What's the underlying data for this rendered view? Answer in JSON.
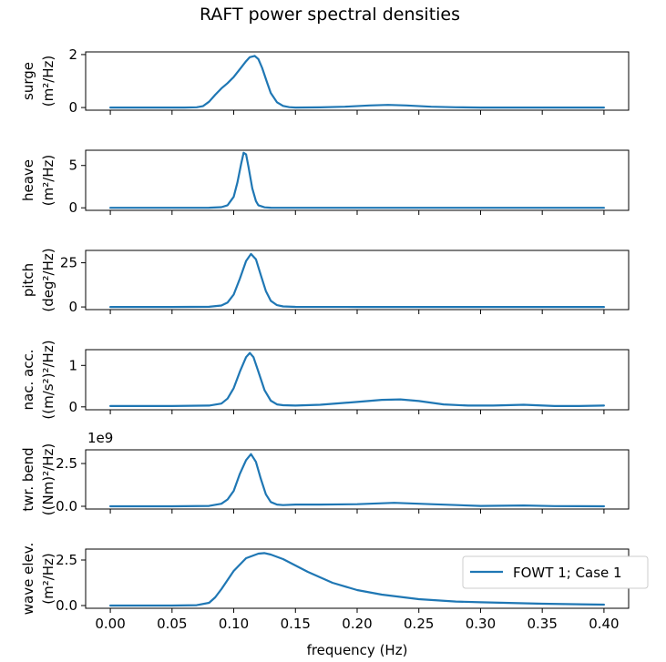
{
  "figure": {
    "title": "RAFT power spectral densities"
  },
  "legend": {
    "entry": "FOWT 1; Case 1",
    "placement": "right"
  },
  "series_color": "#1f77b4",
  "chart_data": [
    {
      "type": "line",
      "ylabel": [
        "surge",
        "(m²/Hz)"
      ],
      "ylim": [
        -0.1,
        2.1
      ],
      "yticks": [
        0,
        2
      ],
      "ytick_labels": [
        "0",
        "2"
      ],
      "multiplier": "",
      "xlim": [
        -0.02,
        0.42
      ],
      "series": [
        {
          "x": [
            0,
            0.03,
            0.06,
            0.07,
            0.075,
            0.08,
            0.085,
            0.09,
            0.095,
            0.1,
            0.105,
            0.11,
            0.113,
            0.117,
            0.12,
            0.123,
            0.127,
            0.13,
            0.135,
            0.14,
            0.145,
            0.15,
            0.17,
            0.19,
            0.21,
            0.225,
            0.24,
            0.26,
            0.28,
            0.3,
            0.35,
            0.4
          ],
          "y": [
            0,
            0,
            0,
            0.01,
            0.05,
            0.22,
            0.48,
            0.72,
            0.92,
            1.15,
            1.45,
            1.75,
            1.9,
            1.95,
            1.83,
            1.5,
            0.95,
            0.55,
            0.2,
            0.06,
            0.015,
            0,
            0.005,
            0.03,
            0.08,
            0.1,
            0.08,
            0.03,
            0.01,
            0,
            0,
            0
          ]
        }
      ]
    },
    {
      "type": "line",
      "ylabel": [
        "heave",
        "(m²/Hz)"
      ],
      "ylim": [
        -0.3,
        6.8
      ],
      "yticks": [
        0,
        5
      ],
      "ytick_labels": [
        "0",
        "5"
      ],
      "multiplier": "",
      "xlim": [
        -0.02,
        0.42
      ],
      "series": [
        {
          "x": [
            0,
            0.05,
            0.08,
            0.09,
            0.095,
            0.1,
            0.103,
            0.106,
            0.108,
            0.11,
            0.112,
            0.115,
            0.118,
            0.12,
            0.125,
            0.13,
            0.15,
            0.2,
            0.3,
            0.4
          ],
          "y": [
            0,
            0,
            0.01,
            0.08,
            0.3,
            1.3,
            3,
            5.2,
            6.5,
            6.3,
            4.8,
            2.3,
            0.8,
            0.3,
            0.05,
            0.01,
            0,
            0,
            0,
            0
          ]
        }
      ]
    },
    {
      "type": "line",
      "ylabel": [
        "pitch",
        "(deg²/Hz)"
      ],
      "ylim": [
        -1.5,
        32
      ],
      "yticks": [
        0,
        25
      ],
      "ytick_labels": [
        "0",
        "25"
      ],
      "multiplier": "",
      "xlim": [
        -0.02,
        0.42
      ],
      "series": [
        {
          "x": [
            0,
            0.05,
            0.08,
            0.09,
            0.095,
            0.1,
            0.105,
            0.11,
            0.114,
            0.118,
            0.122,
            0.126,
            0.13,
            0.135,
            0.14,
            0.15,
            0.2,
            0.3,
            0.4
          ],
          "y": [
            0,
            0,
            0.1,
            0.8,
            2.5,
            7,
            16,
            26,
            30,
            27,
            18,
            9,
            3.5,
            1,
            0.3,
            0.05,
            0,
            0,
            0
          ]
        }
      ]
    },
    {
      "type": "line",
      "ylabel": [
        "nac. acc.",
        "((m/s²)²/Hz)"
      ],
      "ylim": [
        -0.07,
        1.38
      ],
      "yticks": [
        0,
        1
      ],
      "ytick_labels": [
        "0",
        "1"
      ],
      "multiplier": "",
      "xlim": [
        -0.02,
        0.42
      ],
      "series": [
        {
          "x": [
            0,
            0.05,
            0.08,
            0.09,
            0.095,
            0.1,
            0.105,
            0.11,
            0.113,
            0.116,
            0.12,
            0.125,
            0.13,
            0.135,
            0.14,
            0.15,
            0.17,
            0.2,
            0.22,
            0.235,
            0.25,
            0.27,
            0.29,
            0.31,
            0.335,
            0.36,
            0.38,
            0.4
          ],
          "y": [
            0.02,
            0.02,
            0.03,
            0.08,
            0.2,
            0.45,
            0.85,
            1.2,
            1.3,
            1.2,
            0.85,
            0.4,
            0.15,
            0.06,
            0.04,
            0.03,
            0.05,
            0.12,
            0.17,
            0.18,
            0.14,
            0.06,
            0.03,
            0.03,
            0.05,
            0.02,
            0.02,
            0.03
          ]
        }
      ]
    },
    {
      "type": "line",
      "ylabel": [
        "twr. bend",
        "((Nm)²/Hz)"
      ],
      "ylim": [
        -0.16,
        3.3
      ],
      "yticks": [
        0,
        2.5
      ],
      "ytick_labels": [
        "0.0",
        "2.5"
      ],
      "multiplier": "1e9",
      "xlim": [
        -0.02,
        0.42
      ],
      "series": [
        {
          "x": [
            0,
            0.05,
            0.08,
            0.09,
            0.095,
            0.1,
            0.105,
            0.11,
            0.114,
            0.118,
            0.122,
            0.126,
            0.13,
            0.135,
            0.14,
            0.15,
            0.17,
            0.2,
            0.23,
            0.26,
            0.3,
            0.335,
            0.36,
            0.4
          ],
          "y": [
            0,
            0,
            0.02,
            0.15,
            0.4,
            0.9,
            1.9,
            2.7,
            3.05,
            2.6,
            1.6,
            0.7,
            0.25,
            0.1,
            0.07,
            0.1,
            0.1,
            0.12,
            0.2,
            0.12,
            0.02,
            0.05,
            0.01,
            0
          ]
        }
      ]
    },
    {
      "type": "line",
      "ylabel": [
        "wave elev.",
        "(m²/Hz)"
      ],
      "ylim": [
        -0.15,
        3.1
      ],
      "yticks": [
        0,
        2.5
      ],
      "ytick_labels": [
        "0.0",
        "2.5"
      ],
      "multiplier": "",
      "xlim": [
        -0.02,
        0.42
      ],
      "xlabel": "frequency (Hz)",
      "xticks": [
        0,
        0.05,
        0.1,
        0.15,
        0.2,
        0.25,
        0.3,
        0.35,
        0.4
      ],
      "xtick_labels": [
        "0.00",
        "0.05",
        "0.10",
        "0.15",
        "0.20",
        "0.25",
        "0.30",
        "0.35",
        "0.40"
      ],
      "series": [
        {
          "name": "FOWT 1; Case 1",
          "x": [
            0,
            0.05,
            0.07,
            0.08,
            0.085,
            0.09,
            0.1,
            0.11,
            0.12,
            0.125,
            0.13,
            0.14,
            0.15,
            0.16,
            0.18,
            0.2,
            0.22,
            0.25,
            0.28,
            0.3,
            0.35,
            0.4
          ],
          "y": [
            0,
            0,
            0.02,
            0.15,
            0.45,
            0.9,
            1.9,
            2.6,
            2.85,
            2.88,
            2.8,
            2.55,
            2.2,
            1.85,
            1.25,
            0.85,
            0.6,
            0.35,
            0.22,
            0.18,
            0.1,
            0.05
          ]
        }
      ]
    }
  ]
}
